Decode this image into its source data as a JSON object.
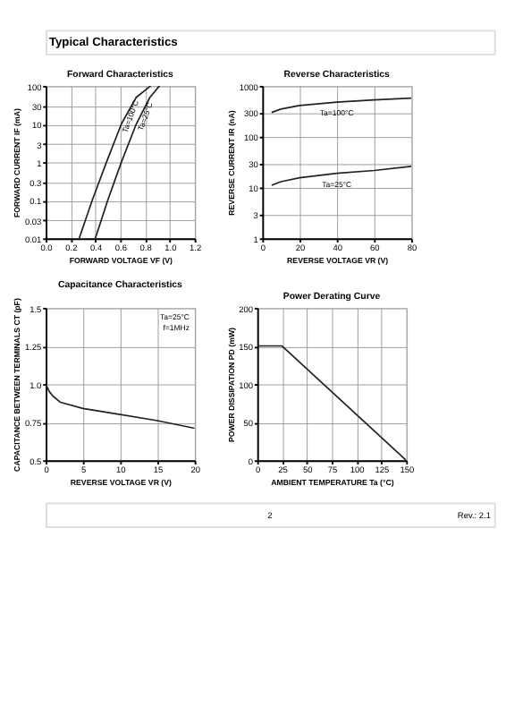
{
  "chart_data": [
    {
      "type": "other",
      "title": "Typical Characteristics"
    },
    {
      "type": "line",
      "title": "Forward   Characteristics",
      "xlabel": "FORWARD VOLTAGE   VF   (V)",
      "ylabel": "FORWARD CURRENT   IF   (mA)",
      "log": "y",
      "grid": true,
      "xlim": [
        0,
        1.2
      ],
      "xticks": [
        {
          "value": 0,
          "label": "0.0"
        },
        0.2,
        0.4,
        0.6,
        0.8,
        {
          "value": 1,
          "label": "1.0"
        },
        1.2
      ],
      "ylim": [
        0.01,
        100
      ],
      "yticks": [
        0.01,
        0.03,
        0.1,
        0.3,
        1,
        3,
        10,
        30,
        100
      ],
      "series": [
        {
          "color": "#222222",
          "x": [
            0.27,
            0.375,
            0.49,
            0.61,
            0.73,
            0.846
          ],
          "values": [
            0.01,
            0.1,
            1,
            10,
            50,
            100
          ]
        },
        {
          "color": "#222222",
          "x": [
            0.4,
            0.5,
            0.61,
            0.73,
            0.84,
            0.917
          ],
          "values": [
            0.01,
            0.1,
            1,
            10,
            50,
            100
          ]
        }
      ],
      "annotations": [
        "Ta=100°C",
        "Ta=25°C"
      ]
    },
    {
      "type": "line",
      "title": "Reverse   Characteristics",
      "xlabel": "REVERSE VOLTAGE   VR   (V)",
      "ylabel": "REVERSE CURRENT   IR   (nA)",
      "log": "y",
      "grid": true,
      "xlim": [
        0,
        80
      ],
      "xticks": [
        0,
        20,
        40,
        60,
        80
      ],
      "ylim": [
        1,
        1000
      ],
      "yticks": [
        1,
        3,
        10,
        30,
        100,
        300,
        {
          "value": 1000,
          "label": "1000"
        }
      ],
      "series": [
        {
          "color": "#222222",
          "x": [
            5,
            10,
            20,
            40,
            60,
            80
          ],
          "values": [
            300,
            350,
            410,
            477,
            530,
            574
          ]
        },
        {
          "color": "#222222",
          "x": [
            5,
            10,
            20,
            40,
            60,
            80
          ],
          "values": [
            11.1,
            13,
            15.6,
            19,
            21.6,
            26
          ]
        }
      ],
      "annotations": [
        "Ta=100°C",
        "Ta=25°C"
      ]
    },
    {
      "type": "line",
      "title": "Capacitance Characteristics",
      "xlabel": "REVERSE VOLTAGE   VR   (V)",
      "ylabel": "CAPACITANCE BETWEEN TERMINALS   CT   (pF)",
      "grid": true,
      "xlim": [
        0,
        20
      ],
      "xticks": [
        0,
        5,
        10,
        15,
        20
      ],
      "ylim": [
        0.5,
        1.5
      ],
      "yticks": [
        0.5,
        0.75,
        {
          "value": 1,
          "label": "1.0"
        },
        1.25,
        1.5
      ],
      "series": [
        {
          "color": "#222222",
          "x": [
            0,
            0.5,
            1,
            2,
            5,
            10,
            15,
            20
          ],
          "values": [
            1.0,
            0.95,
            0.92,
            0.88,
            0.84,
            0.8,
            0.76,
            0.71
          ]
        }
      ],
      "annotations": [
        "Ta=25°C",
        "f=1MHz"
      ]
    },
    {
      "type": "line",
      "title": "Power Derating Curve",
      "xlabel": "AMBIENT TEMPERATURE   Ta   (°C)",
      "ylabel": "POWER DISSIPATION   PD   (mW)",
      "grid": true,
      "xlim": [
        0,
        150
      ],
      "xticks": [
        0,
        25,
        50,
        75,
        100,
        125,
        150
      ],
      "ylim": [
        0,
        200
      ],
      "yticks": [
        0,
        50,
        100,
        150,
        200
      ],
      "series": [
        {
          "color": "#222222",
          "x": [
            0,
            25,
            150
          ],
          "values": [
            150,
            150,
            0
          ]
        }
      ]
    },
    {
      "type": "other",
      "annotations": [
        "2",
        "Rev.: 2.1"
      ]
    }
  ]
}
